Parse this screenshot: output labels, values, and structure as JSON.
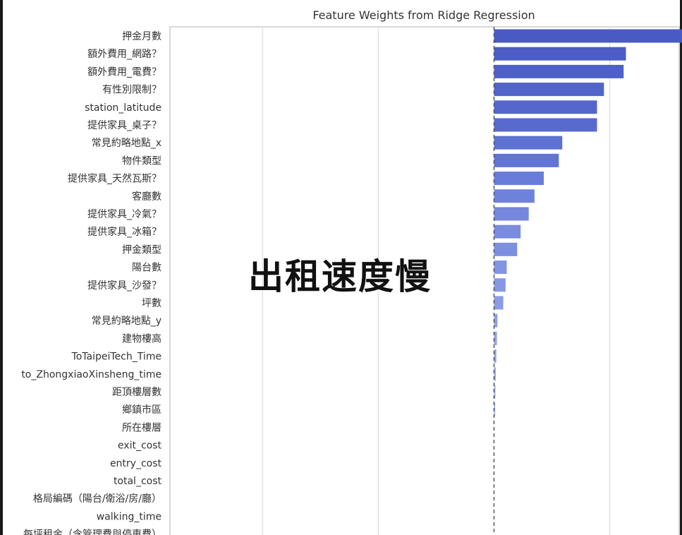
{
  "overlay_text": "出租速度慢",
  "chart_data": {
    "type": "bar",
    "orientation": "horizontal",
    "title": "Feature Weights from Ridge Regression",
    "xlabel": "",
    "ylabel": "",
    "xlim": [
      -2.8,
      1.6
    ],
    "grid": true,
    "zero_line": "dashed",
    "categories": [
      "押金月數",
      "額外費用_網路？",
      "額外費用_電費？",
      "有性別限制？",
      "station_latitude",
      "提供家具_桌子？",
      "常見約略地點_x",
      "物件類型",
      "提供家具_天然瓦斯？",
      "客廳數",
      "提供家具_冷氣？",
      "提供家具_冰箱？",
      "押金類型",
      "陽台數",
      "提供家具_沙發？",
      "坪數",
      "常見約略地點_y",
      "建物樓高",
      "ToTaipeiTech_Time",
      "to_ZhongxiaoXinsheng_time",
      "距頂樓層數",
      "鄉鎮市區",
      "所在樓層",
      "exit_cost",
      "entry_cost",
      "total_cost",
      "格局編碼（陽台/衛浴/房/廳）",
      "walking_time",
      "每坪租金（含管理費與停車費）"
    ],
    "values": [
      1.67,
      1.14,
      1.12,
      0.95,
      0.89,
      0.89,
      0.59,
      0.56,
      0.43,
      0.35,
      0.3,
      0.23,
      0.2,
      0.11,
      0.1,
      0.08,
      0.03,
      0.025,
      0.02,
      0.015,
      0.012,
      0.01,
      0,
      0,
      0,
      0,
      0,
      0,
      0
    ],
    "bar_colors": [
      "#4a5ac4",
      "#4c5dc6",
      "#4f60c8",
      "#5264ca",
      "#5567cc",
      "#586acd",
      "#5e72d2",
      "#6275d4",
      "#697cd8",
      "#6f82db",
      "#7487dd",
      "#798cdf",
      "#7d90e0",
      "#8295e2",
      "#8698e3",
      "#8a9ce4",
      "#8ea0e5",
      "#92a3e6",
      "#95a6e7",
      "#98a9e8",
      "#9aabe8",
      "#9cade9",
      "#9eafe9",
      "#a0b0ea",
      "#a2b2ea",
      "#a4b4eb",
      "#a6b6eb",
      "#a8b8ec",
      "#aabaec"
    ]
  }
}
